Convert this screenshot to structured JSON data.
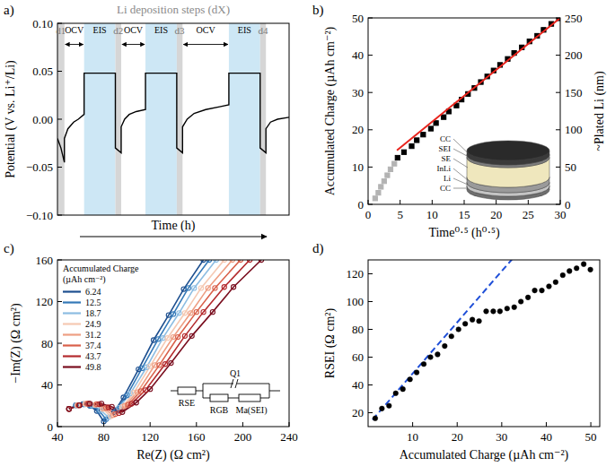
{
  "chart_data": [
    {
      "panel": "a)",
      "type": "line",
      "title": "Li deposition steps (dX)",
      "xlabel": "Time (h)",
      "ylabel": "Potential (V vs. Li⁺/Li)",
      "xlim": [
        0,
        100
      ],
      "ylim": [
        -0.1,
        0.1
      ],
      "yticks": [
        {
          "value": -0.1,
          "label": "−0.10"
        },
        {
          "value": -0.05,
          "label": "−0.05"
        },
        {
          "value": 0,
          "label": "0.00"
        },
        0.05,
        {
          "value": 0.1,
          "label": "0.10"
        }
      ],
      "tick_labels": "y",
      "color": "#000000",
      "x": [
        0,
        1.5,
        3,
        3,
        4.5,
        7,
        9,
        11.5,
        11.5,
        25,
        25,
        27.5,
        27.5,
        29,
        31,
        34,
        38,
        38,
        51.5,
        51.5,
        54,
        54,
        56,
        59,
        64,
        70,
        74,
        74,
        87.5,
        87.5,
        90,
        90,
        92,
        95,
        100
      ],
      "values": [
        -0.02,
        -0.03,
        -0.045,
        -0.02,
        -0.01,
        -0.003,
        0,
        0.005,
        0.048,
        0.048,
        -0.03,
        -0.035,
        -0.008,
        0,
        0.005,
        0.008,
        0.01,
        0.048,
        0.048,
        -0.03,
        -0.035,
        -0.008,
        0,
        0.006,
        0.01,
        0.013,
        0.015,
        0.048,
        0.048,
        -0.03,
        -0.035,
        -0.01,
        -0.003,
        0,
        0.002
      ],
      "deposition_steps": {
        "labels": [
          "d1",
          "d2",
          "d3",
          "d4"
        ],
        "ranges": [
          [
            0,
            3
          ],
          [
            25,
            27.5
          ],
          [
            51.5,
            54
          ],
          [
            87.5,
            90
          ]
        ],
        "color": "#d6d6d6"
      },
      "ocv_steps": {
        "label": "OCV",
        "ranges": [
          [
            3,
            11.5
          ],
          [
            27.5,
            38
          ],
          [
            54,
            74
          ]
        ]
      },
      "eis_steps": {
        "label": "EIS",
        "ranges": [
          [
            11.5,
            25
          ],
          [
            38,
            51.5
          ],
          [
            74,
            87.5
          ]
        ],
        "color": "#cde7f5"
      }
    },
    {
      "panel": "b)",
      "type": "scatter",
      "xlabel": "Time⁰·⁵ (h⁰·⁵)",
      "ylabel": "Accumulated Charge (µAh cm⁻²)",
      "y2label": "~Plated Li (nm)",
      "xlim": [
        0,
        30
      ],
      "ylim": [
        0,
        50
      ],
      "y2lim": [
        0,
        250
      ],
      "xticks": [
        0,
        5,
        10,
        15,
        20,
        25,
        30
      ],
      "yticks": [
        0,
        10,
        20,
        30,
        40,
        50
      ],
      "y2ticks": [
        0,
        50,
        100,
        150,
        200,
        250
      ],
      "marker": "square",
      "series": [
        {
          "color": "#b3b3b3",
          "x": [
            1.1,
            1.6,
            2.0,
            2.5,
            3.0,
            3.5,
            4.1
          ],
          "values": [
            1.6,
            3.1,
            4.7,
            6.2,
            7.8,
            9.4,
            10.9
          ]
        },
        {
          "color": "#000000",
          "x": [
            4.6,
            5.6,
            6.8,
            7.6,
            8.6,
            9.8,
            10.6,
            11.8,
            12.6,
            13.8,
            14.6,
            15.6,
            16.6,
            17.6,
            18.6,
            19.6,
            20.6,
            21.8,
            22.8,
            24.0,
            25.2,
            26.4,
            27.4,
            28.6,
            29.8
          ],
          "values": [
            12.5,
            14.0,
            15.6,
            17.2,
            18.7,
            20.3,
            21.8,
            23.4,
            24.9,
            26.5,
            28.1,
            29.6,
            31.2,
            32.8,
            34.3,
            35.9,
            37.4,
            39.0,
            40.6,
            42.1,
            43.7,
            45.2,
            46.8,
            48.4,
            49.9
          ]
        }
      ],
      "fit": {
        "color": "#e8231c",
        "line_style": "solid",
        "x": [
          4.5,
          30
        ],
        "values": [
          14.5,
          50
        ]
      },
      "inset_labels": [
        "CC",
        "SEI",
        "SE",
        "InLi",
        "Li",
        "CC"
      ]
    },
    {
      "panel": "c)",
      "type": "line",
      "xlabel": "Re(Z) (Ω cm²)",
      "ylabel": "−Im(Z) (Ω cm²)",
      "xlim": [
        40,
        240
      ],
      "ylim": [
        0,
        160
      ],
      "xticks": [
        40,
        80,
        120,
        160,
        200,
        240
      ],
      "yticks": [
        0,
        40,
        80,
        120,
        160
      ],
      "marker": "circle",
      "line_style": "solid",
      "legend": "upper left",
      "legend_title": "Accumulated Charge (µAh cm⁻²)",
      "series": [
        {
          "name": "6.24",
          "color": "#1d4f8f",
          "x": [
            50,
            56,
            62,
            68,
            74,
            80,
            89,
            97,
            110,
            123,
            136,
            149,
            166
          ],
          "values": [
            17,
            20.5,
            21.5,
            20,
            15,
            5,
            14,
            28,
            55,
            83,
            107,
            132,
            160
          ]
        },
        {
          "name": "12.5",
          "color": "#3479b8",
          "x": [
            50,
            56,
            63,
            69,
            76,
            82,
            91,
            100,
            113,
            127,
            140,
            153,
            171
          ],
          "values": [
            17,
            20.5,
            21.5,
            20,
            15,
            7,
            16,
            30,
            56,
            84,
            108,
            133,
            160
          ]
        },
        {
          "name": "18.7",
          "color": "#8dbde2",
          "x": [
            50,
            57,
            64,
            70,
            77,
            84,
            93,
            103,
            117,
            131,
            145,
            158,
            177
          ],
          "values": [
            17,
            20.5,
            21.5,
            20.5,
            16,
            9,
            18,
            32,
            57,
            85,
            109,
            133,
            160
          ]
        },
        {
          "name": "24.9",
          "color": "#f5c9b3",
          "x": [
            50,
            57,
            64,
            72,
            79,
            86,
            96,
            106,
            120,
            135,
            150,
            164,
            184
          ],
          "values": [
            17,
            20.5,
            22,
            21,
            17,
            10,
            19,
            32.5,
            58,
            85,
            109,
            133,
            160
          ]
        },
        {
          "name": "31.2",
          "color": "#ee9e83",
          "x": [
            50,
            58,
            65,
            73,
            80,
            88,
            98,
            109,
            124,
            140,
            155,
            170,
            191
          ],
          "values": [
            17,
            20.5,
            22,
            21,
            17.5,
            11,
            20,
            33,
            59,
            86,
            109,
            133,
            160
          ]
        },
        {
          "name": "37.4",
          "color": "#d9604a",
          "x": [
            50,
            58,
            66,
            74,
            82,
            90,
            101,
            112,
            128,
            144,
            160,
            176,
            198
          ],
          "values": [
            17,
            20.5,
            22,
            21.5,
            18,
            12,
            21,
            34,
            59,
            86,
            110,
            133,
            160
          ]
        },
        {
          "name": "43.7",
          "color": "#b42b2e",
          "x": [
            50,
            59,
            67,
            76,
            84,
            93,
            104,
            116,
            133,
            150,
            166,
            184,
            206
          ],
          "values": [
            17,
            20.5,
            22,
            21.5,
            18.5,
            13,
            22,
            35,
            60,
            87,
            110,
            134,
            160
          ]
        },
        {
          "name": "49.8",
          "color": "#7a0e1f",
          "x": [
            50,
            59,
            68,
            78,
            87,
            96,
            108,
            120,
            138,
            156,
            174,
            192,
            216
          ],
          "values": [
            17,
            20.5,
            22,
            22,
            19,
            14,
            23,
            36,
            61,
            87,
            110,
            134,
            160
          ]
        }
      ],
      "circuit_labels": [
        "RSE",
        "Q1",
        "RGB",
        "Ma(SEI)"
      ]
    },
    {
      "panel": "d)",
      "type": "scatter",
      "xlabel": "Accumulated Charge (µAh cm⁻²)",
      "ylabel": "RSEI (Ω cm²)",
      "xlim": [
        0,
        52
      ],
      "ylim": [
        10,
        130
      ],
      "xticks": [
        10,
        20,
        30,
        40,
        50
      ],
      "yticks": [
        20,
        40,
        60,
        80,
        100,
        120
      ],
      "marker": "circle",
      "color": "#000000",
      "x": [
        1.6,
        3.1,
        4.7,
        6.2,
        7.8,
        9.4,
        10.9,
        12.5,
        14.0,
        15.6,
        17.2,
        18.7,
        20.3,
        21.8,
        23.4,
        24.9,
        26.5,
        28.1,
        29.6,
        31.2,
        32.8,
        34.3,
        35.9,
        37.4,
        39.0,
        40.6,
        42.1,
        43.7,
        45.2,
        46.8,
        48.4,
        49.9
      ],
      "values": [
        16,
        23,
        25,
        34,
        37,
        44,
        49,
        55,
        60,
        62,
        68,
        75,
        80,
        84,
        87,
        86,
        93,
        93,
        93,
        95,
        96,
        100,
        103,
        108,
        108,
        111,
        114,
        119,
        122,
        124,
        127,
        123
      ],
      "fit": {
        "color": "#1f4fd8",
        "line_style": "dashed",
        "x": [
          1,
          33
        ],
        "values": [
          15,
          133
        ]
      }
    }
  ]
}
